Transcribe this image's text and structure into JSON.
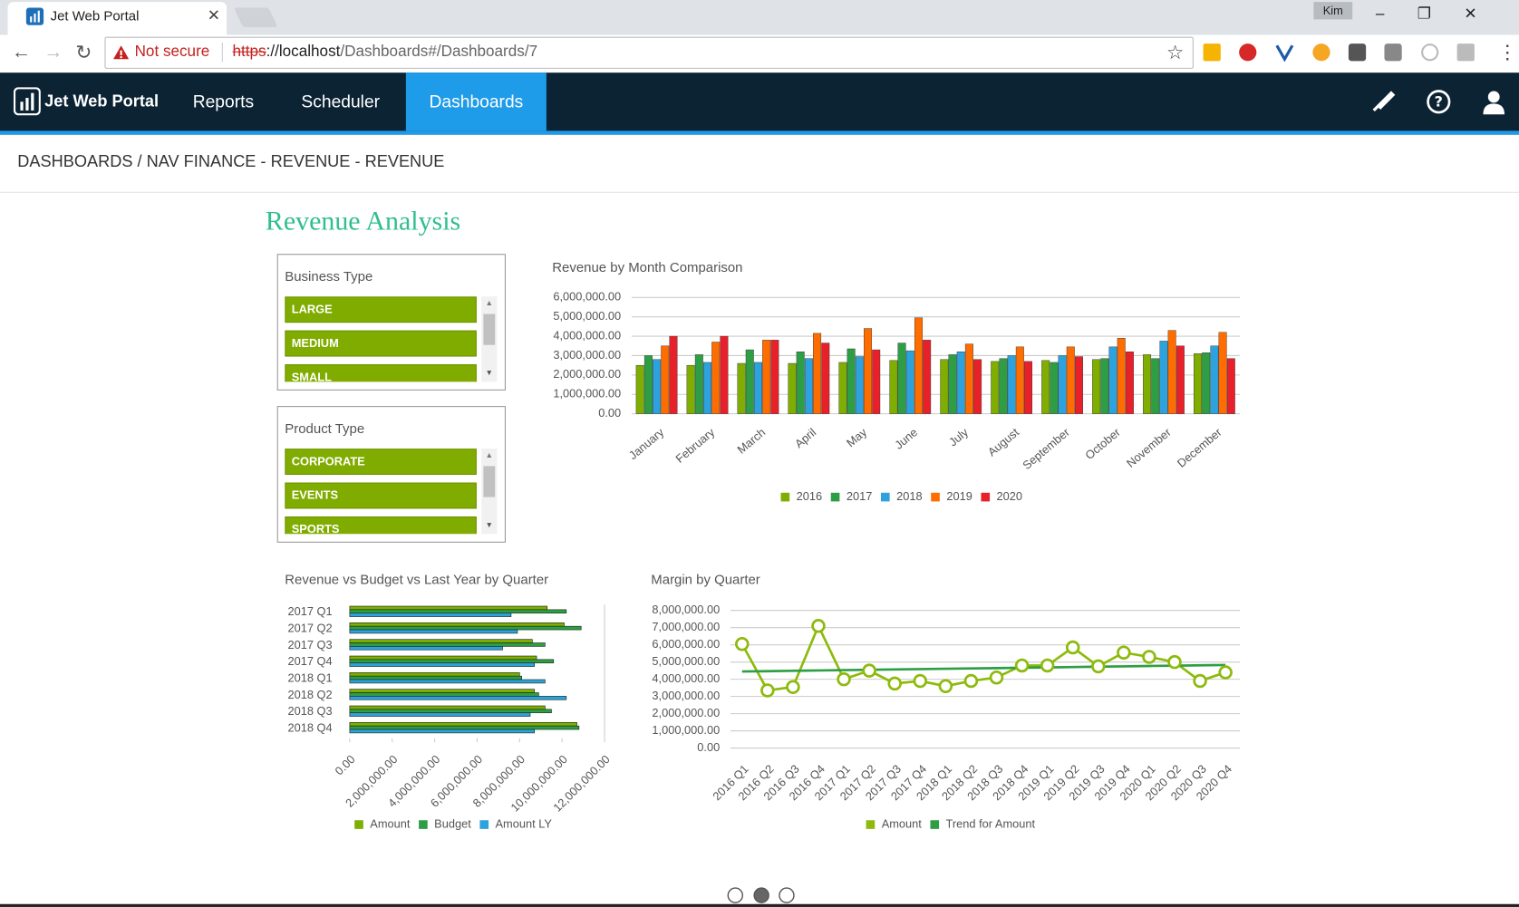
{
  "browser": {
    "tab_title": "Jet Web Portal",
    "user": "Kim",
    "security": "Not secure",
    "url_scheme": "https",
    "url_host": "://localhost",
    "url_path": "/Dashboards#/Dashboards/7"
  },
  "nav": {
    "brand": "Jet Web Portal",
    "items": [
      "Reports",
      "Scheduler",
      "Dashboards"
    ],
    "active": 2
  },
  "breadcrumb": "DASHBOARDS / NAV FINANCE - REVENUE - REVENUE",
  "dashboard_title": "Revenue Analysis",
  "filters": [
    {
      "label": "Business Type",
      "options": [
        "LARGE",
        "MEDIUM",
        "SMALL"
      ]
    },
    {
      "label": "Product Type",
      "options": [
        "CORPORATE",
        "EVENTS",
        "SPORTS"
      ]
    }
  ],
  "chart_data": [
    {
      "type": "bar",
      "orientation": "vertical",
      "title": "Revenue by Month Comparison",
      "categories": [
        "January",
        "February",
        "March",
        "April",
        "May",
        "June",
        "July",
        "August",
        "September",
        "October",
        "November",
        "December"
      ],
      "series": [
        {
          "name": "2016",
          "color": "#7fad00",
          "values": [
            2500000,
            2500000,
            2600000,
            2600000,
            2650000,
            2750000,
            2800000,
            2700000,
            2750000,
            2800000,
            3050000,
            3100000
          ]
        },
        {
          "name": "2017",
          "color": "#2e9e45",
          "values": [
            3000000,
            3050000,
            3300000,
            3200000,
            3350000,
            3650000,
            3050000,
            2850000,
            2650000,
            2850000,
            2850000,
            3150000
          ]
        },
        {
          "name": "2018",
          "color": "#2da2dd",
          "values": [
            2800000,
            2650000,
            2650000,
            2850000,
            2950000,
            3250000,
            3200000,
            3000000,
            3000000,
            3450000,
            3750000,
            3500000
          ]
        },
        {
          "name": "2019",
          "color": "#ff6d00",
          "values": [
            3500000,
            3700000,
            3800000,
            4150000,
            4400000,
            4950000,
            3600000,
            3450000,
            3450000,
            3900000,
            4300000,
            4200000
          ]
        },
        {
          "name": "2020",
          "color": "#e8202a",
          "values": [
            4000000,
            4000000,
            3800000,
            3650000,
            3300000,
            3800000,
            2800000,
            2700000,
            2950000,
            3200000,
            3500000,
            2850000
          ]
        }
      ],
      "ylim": [
        0,
        6000000
      ],
      "yticks": [
        {
          "value": 0,
          "label": "0.00"
        },
        {
          "value": 1000000,
          "label": "1,000,000.00"
        },
        {
          "value": 2000000,
          "label": "2,000,000.00"
        },
        {
          "value": 3000000,
          "label": "3,000,000.00"
        },
        {
          "value": 4000000,
          "label": "4,000,000.00"
        },
        {
          "value": 5000000,
          "label": "5,000,000.00"
        },
        {
          "value": 6000000,
          "label": "6,000,000.00"
        }
      ],
      "grid": true,
      "legend": "bottom"
    },
    {
      "type": "bar",
      "orientation": "horizontal",
      "title": "Revenue vs Budget vs Last Year by Quarter",
      "categories": [
        "2017 Q1",
        "2017 Q2",
        "2017 Q3",
        "2017 Q4",
        "2018 Q1",
        "2018 Q2",
        "2018 Q3",
        "2018 Q4"
      ],
      "series": [
        {
          "name": "Amount",
          "color": "#7fad00",
          "values": [
            9300000,
            10100000,
            8600000,
            8800000,
            8000000,
            8700000,
            9200000,
            10700000
          ]
        },
        {
          "name": "Budget",
          "color": "#2e9e45",
          "values": [
            10200000,
            10900000,
            9200000,
            9600000,
            8100000,
            8900000,
            9500000,
            10800000
          ]
        },
        {
          "name": "Amount LY",
          "color": "#2da2dd",
          "values": [
            7600000,
            7900000,
            7200000,
            8700000,
            9200000,
            10200000,
            8500000,
            8700000
          ]
        }
      ],
      "xlim": [
        0,
        12000000
      ],
      "xticks": [
        {
          "value": 0,
          "label": "0.00"
        },
        {
          "value": 2000000,
          "label": "2,000,000.00"
        },
        {
          "value": 4000000,
          "label": "4,000,000.00"
        },
        {
          "value": 6000000,
          "label": "6,000,000.00"
        },
        {
          "value": 8000000,
          "label": "8,000,000.00"
        },
        {
          "value": 10000000,
          "label": "10,000,000.00"
        },
        {
          "value": 12000000,
          "label": "12,000,000.00"
        }
      ],
      "grid": false,
      "legend": "bottom"
    },
    {
      "type": "line",
      "title": "Margin by Quarter",
      "categories": [
        "2016 Q1",
        "2016 Q2",
        "2016 Q3",
        "2016 Q4",
        "2017 Q1",
        "2017 Q2",
        "2017 Q3",
        "2017 Q4",
        "2018 Q1",
        "2018 Q2",
        "2018 Q3",
        "2018 Q4",
        "2019 Q1",
        "2019 Q2",
        "2019 Q3",
        "2019 Q4",
        "2020 Q1",
        "2020 Q2",
        "2020 Q3",
        "2020 Q4"
      ],
      "series": [
        {
          "name": "Amount",
          "color": "#8dba0c",
          "markers": true,
          "values": [
            6050000,
            3350000,
            3550000,
            7100000,
            4000000,
            4500000,
            3750000,
            3900000,
            3600000,
            3900000,
            4100000,
            4800000,
            4800000,
            5850000,
            4750000,
            5550000,
            5300000,
            5000000,
            3900000,
            4400000
          ]
        },
        {
          "name": "Trend for Amount",
          "color": "#2e9e45",
          "markers": false,
          "values": [
            4450000,
            4470000,
            4490000,
            4510000,
            4530000,
            4550000,
            4570000,
            4590000,
            4610000,
            4630000,
            4650000,
            4670000,
            4690000,
            4710000,
            4730000,
            4750000,
            4770000,
            4790000,
            4810000,
            4830000
          ]
        }
      ],
      "ylim": [
        0,
        8000000
      ],
      "yticks": [
        {
          "value": 0,
          "label": "0.00"
        },
        {
          "value": 1000000,
          "label": "1,000,000.00"
        },
        {
          "value": 2000000,
          "label": "2,000,000.00"
        },
        {
          "value": 3000000,
          "label": "3,000,000.00"
        },
        {
          "value": 4000000,
          "label": "4,000,000.00"
        },
        {
          "value": 5000000,
          "label": "5,000,000.00"
        },
        {
          "value": 6000000,
          "label": "6,000,000.00"
        },
        {
          "value": 7000000,
          "label": "7,000,000.00"
        },
        {
          "value": 8000000,
          "label": "8,000,000.00"
        }
      ],
      "grid": true,
      "legend": "bottom"
    }
  ]
}
